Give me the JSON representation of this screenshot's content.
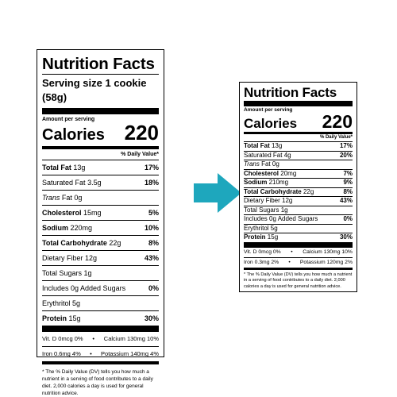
{
  "left": {
    "title": "Nutrition Facts",
    "serving": "Serving size 1 cookie (58g)",
    "amount_per_serving": "Amount per serving",
    "calories_label": "Calories",
    "calories_value": "220",
    "dv_header": "% Daily Value*",
    "nutrients": [
      {
        "label": "Total Fat",
        "amount": "13g",
        "dv": "17%"
      },
      {
        "label": "Saturated Fat",
        "amount": "3.5g",
        "dv": "18%"
      },
      {
        "label": "Trans",
        "amount": "Fat 0g",
        "dv": ""
      },
      {
        "label": "Cholesterol",
        "amount": "15mg",
        "dv": "5%"
      },
      {
        "label": "Sodium",
        "amount": "220mg",
        "dv": "10%"
      },
      {
        "label": "Total Carbohydrate",
        "amount": "22g",
        "dv": "8%"
      },
      {
        "label": "Dietary Fiber",
        "amount": "12g",
        "dv": "43%"
      },
      {
        "label": "Total Sugars",
        "amount": "1g",
        "dv": ""
      },
      {
        "label": "Includes 0g Added Sugars",
        "amount": "",
        "dv": "0%"
      },
      {
        "label": "Erythritol",
        "amount": "5g",
        "dv": ""
      },
      {
        "label": "Protein",
        "amount": "15g",
        "dv": "30%"
      }
    ],
    "vitamins": [
      {
        "a": "Vit. D 0mcg 0%",
        "b": "Calcium 130mg 10%"
      },
      {
        "a": "Iron 0.6mg 4%",
        "b": "Potassium 140mg 4%"
      }
    ],
    "footnote": "* The % Daily Value (DV) tells you how much a nutrient in a serving of food contributes to a daily diet. 2,000 calories a day is used for general nutrition advice."
  },
  "right": {
    "title": "Nutrition Facts",
    "amount_per_serving": "Amount per serving",
    "calories_label": "Calories",
    "calories_value": "220",
    "dv_header": "% Daily Value*",
    "nutrients": [
      {
        "label": "Total Fat",
        "amount": "13g",
        "dv": "17%"
      },
      {
        "label": "Saturated Fat",
        "amount": "4g",
        "dv": "20%"
      },
      {
        "label": "Trans",
        "amount": "Fat 0g",
        "dv": ""
      },
      {
        "label": "Cholesterol",
        "amount": "20mg",
        "dv": "7%"
      },
      {
        "label": "Sodium",
        "amount": "210mg",
        "dv": "9%"
      },
      {
        "label": "Total Carbohydrate",
        "amount": "22g",
        "dv": "8%"
      },
      {
        "label": "Dietary Fiber",
        "amount": "12g",
        "dv": "43%"
      },
      {
        "label": "Total Sugars",
        "amount": "1g",
        "dv": ""
      },
      {
        "label": "Includes 0g Added Sugars",
        "amount": "",
        "dv": "0%"
      },
      {
        "label": "Erythritol",
        "amount": "5g",
        "dv": ""
      },
      {
        "label": "Protein",
        "amount": "15g",
        "dv": "30%"
      }
    ],
    "vitamins": [
      {
        "a": "Vit. D 0mcg 0%",
        "b": "Calcium 130mg 10%"
      },
      {
        "a": "Iron 0.3mg 2%",
        "b": "Potassium 120mg 2%"
      }
    ],
    "footnote": "* The % Daily Value (DV) tells you how much a nutrient in a serving of food contributes to a daily diet. 2,000 calories a day is used for general nutrition advice."
  },
  "arrow": {
    "color": "#1ea7bd",
    "icon": "right-arrow-icon"
  }
}
